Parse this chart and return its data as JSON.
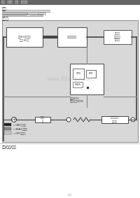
{
  "bg_color": "#ffffff",
  "header_bg": "#666666",
  "header_text": "概述   电路图   检查   故障排除",
  "header_text_color": "#ffffff",
  "section_title1": "概述",
  "desc_text": [
    "后除雾器无法工作时，在下列情况下执行检查。检查熔断丝和继电器。检查后窗",
    "除雾器按钮。检查后窗除雾器网格。检查A/C控制模块(空调放大器)。",
    "后窗除雾器不工作。检查下面所列部件的电源和接地。参见电路图。"
  ],
  "section_title2": "电路图",
  "diag_bg": "#d8d8d8",
  "diag_border": "#888888",
  "watermark": "www.8848qc.com",
  "footer_title": "警告/注意/提示",
  "page_num": "1/7",
  "box_color": "#ffffff",
  "box_border": "#555555",
  "line_dark": "#333333",
  "line_mid": "#888888",
  "line_light": "#bbbbbb",
  "legend": [
    {
      "color": "#222222",
      "label": "= CAN 通信总线"
    },
    {
      "color": "#888888",
      "label": "= BEAN 通信总线"
    },
    {
      "color": "#cccccc",
      "label": "= OPT 通信总线"
    }
  ]
}
